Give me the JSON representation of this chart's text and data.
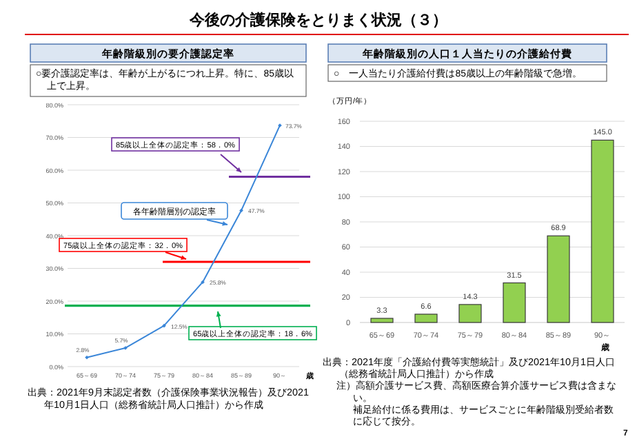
{
  "chart_data": [
    {
      "type": "line",
      "title": "年齢階級別の要介護認定率",
      "subtitle": "○要介護認定率は、年齢が上がるにつれ上昇。特に、85歳以上で上昇。",
      "categories": [
        "65～69",
        "70～74",
        "75～79",
        "80～84",
        "85～89",
        "90～"
      ],
      "series": [
        {
          "name": "各年齢階層別の認定率",
          "color": "#3a86d8",
          "values": [
            2.8,
            5.7,
            12.5,
            25.8,
            47.7,
            73.7
          ],
          "value_labels": [
            "2.8%",
            "5.7%",
            "12.5%",
            "25.8%",
            "47.7%",
            "73.7%"
          ]
        }
      ],
      "xlabel": "歳",
      "ylim": [
        0,
        80
      ],
      "yticks": [
        {
          "value": 0,
          "label": "0.0%"
        },
        {
          "value": 10,
          "label": "10.0%"
        },
        {
          "value": 20,
          "label": "20.0%"
        },
        {
          "value": 30,
          "label": "30.0%"
        },
        {
          "value": 40,
          "label": "40.0%"
        },
        {
          "value": 50,
          "label": "50.0%"
        },
        {
          "value": 60,
          "label": "60.0%"
        },
        {
          "value": 70,
          "label": "70.0%"
        },
        {
          "value": 80,
          "label": "80.0%"
        }
      ],
      "grid": "y",
      "marker": "diamond",
      "line_style": "solid",
      "ref_lines": [
        {
          "axis": "y",
          "value": 58.0,
          "label": "85歳以上全体の認定率：58．0%",
          "color": "#7030a0"
        },
        {
          "axis": "y",
          "value": 32.0,
          "label": "75歳以上全体の認定率：32．0%",
          "color": "#ff0000"
        },
        {
          "axis": "y",
          "value": 18.6,
          "label": "65歳以上全体の認定率：18．6%",
          "color": "#00b050"
        }
      ],
      "annotations": [
        "今後の介護保険をとりまく状況（３）",
        "出典：2021年9月末認定者数（介護保険事業状況報告）及び2021年10月1日人口（総務省統計局人口推計）から作成"
      ]
    },
    {
      "type": "bar",
      "title": "年齢階級別の人口１人当たりの介護給付費",
      "subtitle": "○　一人当たり介護給付費は85歳以上の年齢階級で急増。",
      "categories": [
        "65～69",
        "70～74",
        "75～79",
        "80～84",
        "85～89",
        "90～"
      ],
      "values": [
        3.3,
        6.6,
        14.3,
        31.5,
        68.9,
        145.0
      ],
      "value_labels": [
        "3.3",
        "6.6",
        "14.3",
        "31.5",
        "68.9",
        "145.0"
      ],
      "color": "#92d050",
      "ylabel": "（万円/年）",
      "xlabel": "歳",
      "ylim": [
        0,
        160
      ],
      "yticks": [
        0,
        20,
        40,
        60,
        80,
        100,
        120,
        140,
        160
      ],
      "grid": "y",
      "annotations": [
        "出典：2021年度「介護給付費等実態統計」及び2021年10月1日人口（総務省統計局人口推計）から作成",
        "注）高額介護サービス費、高額医療合算介護サービス費は含まない。",
        "補足給付に係る費用は、サービスごとに年齢階級別受給者数に応じて按分。",
        "7"
      ]
    }
  ]
}
